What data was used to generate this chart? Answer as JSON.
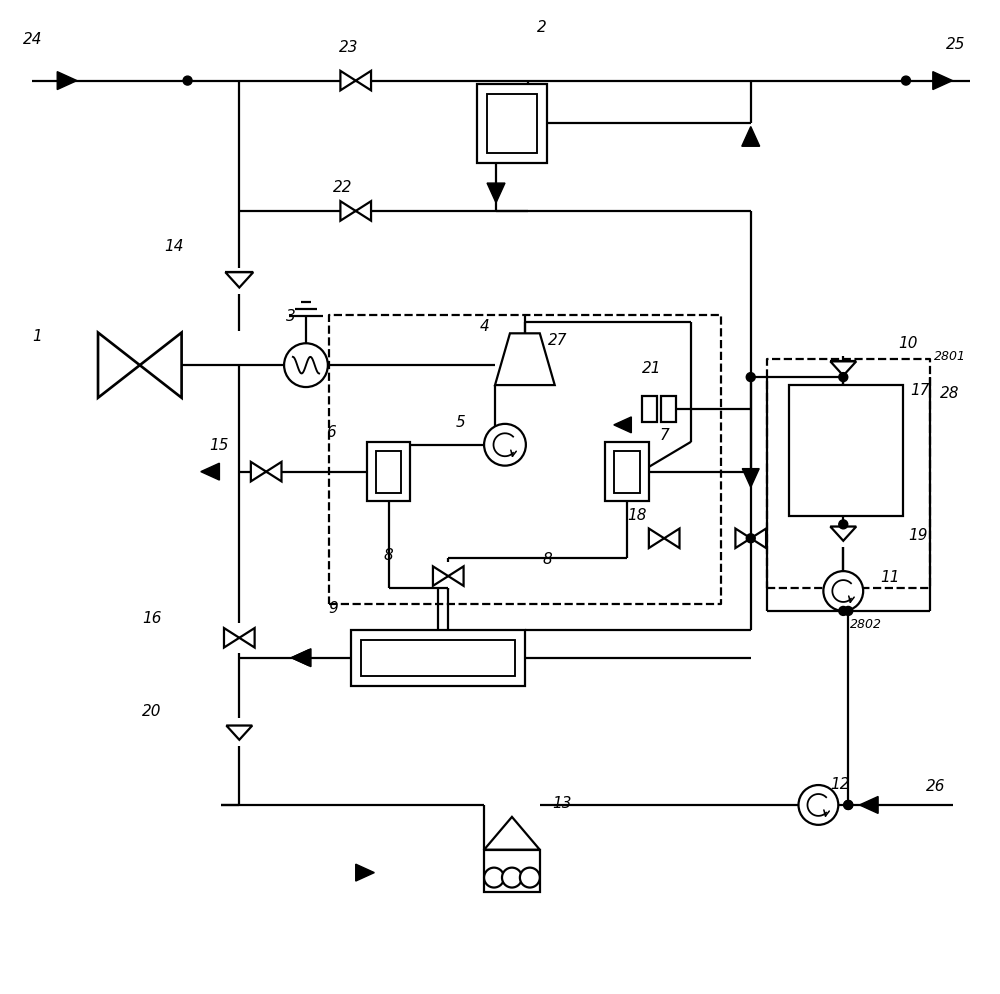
{
  "fig_w": 10.0,
  "fig_h": 9.95,
  "lw": 1.6,
  "lc": "black",
  "bg": "white"
}
